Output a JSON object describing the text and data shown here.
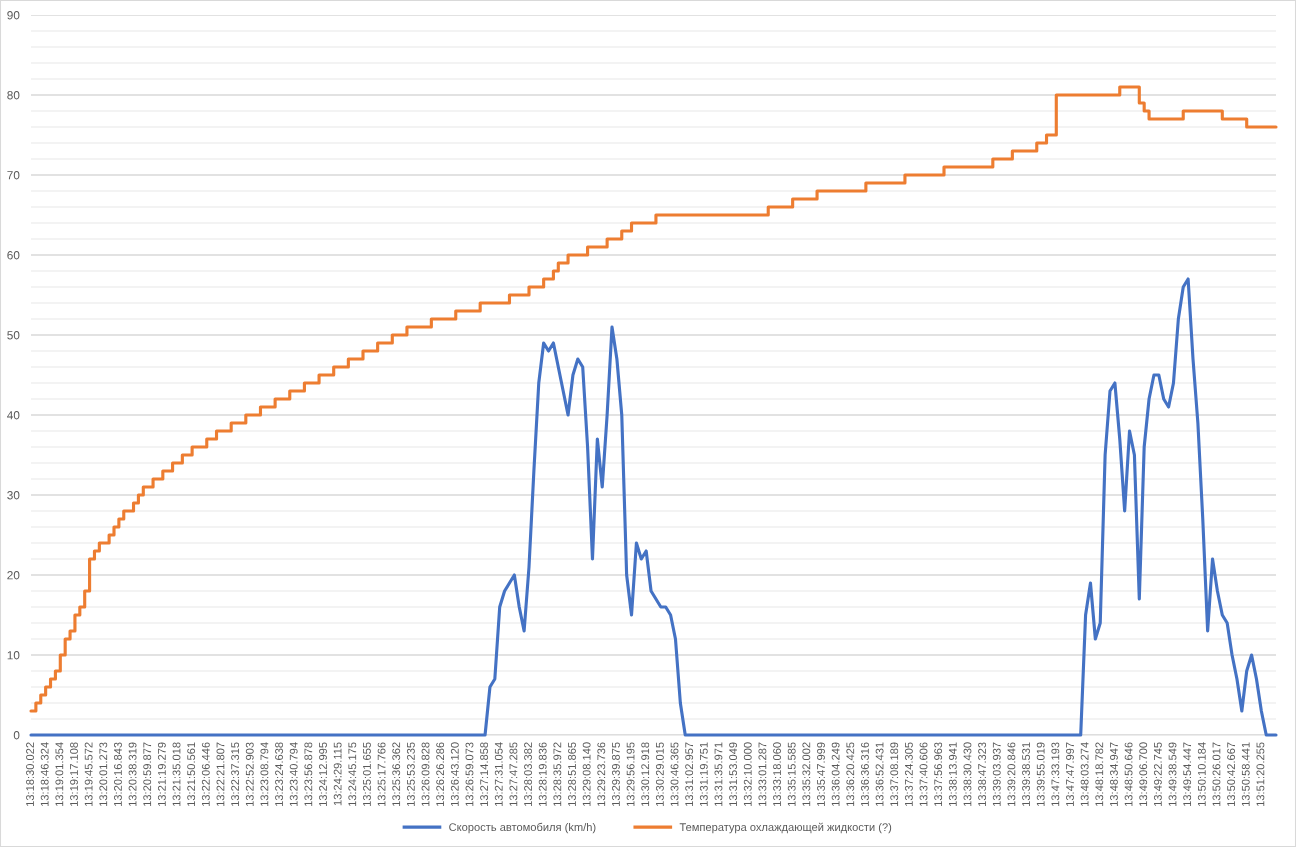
{
  "chart_data": {
    "type": "line",
    "categories": [
      "13:18:30.022",
      null,
      null,
      "13:18:46.324",
      null,
      null,
      "13:19:01.354",
      null,
      null,
      "13:19:17.108",
      null,
      null,
      "13:19:45.572",
      null,
      null,
      "13:20:01.273",
      null,
      null,
      "13:20:16.843",
      null,
      null,
      "13:20:38.319",
      null,
      null,
      "13:20:59.877",
      null,
      null,
      "13:21:19.279",
      null,
      null,
      "13:21:35.018",
      null,
      null,
      "13:21:50.561",
      null,
      null,
      "13:22:06.446",
      null,
      null,
      "13:22:21.807",
      null,
      null,
      "13:22:37.315",
      null,
      null,
      "13:22:52.903",
      null,
      null,
      "13:23:08.794",
      null,
      null,
      "13:23:24.638",
      null,
      null,
      "13:23:40.794",
      null,
      null,
      "13:23:56.878",
      null,
      null,
      "13:24:12.995",
      null,
      null,
      "13:24:29.115",
      null,
      null,
      "13:24:45.175",
      null,
      null,
      "13:25:01.655",
      null,
      null,
      "13:25:17.766",
      null,
      null,
      "13:25:36.362",
      null,
      null,
      "13:25:53.235",
      null,
      null,
      "13:26:09.828",
      null,
      null,
      "13:26:26.286",
      null,
      null,
      "13:26:43.120",
      null,
      null,
      "13:26:59.073",
      null,
      null,
      "13:27:14.858",
      null,
      null,
      "13:27:31.054",
      null,
      null,
      "13:27:47.285",
      null,
      null,
      "13:28:03.382",
      null,
      null,
      "13:28:19.836",
      null,
      null,
      "13:28:35.972",
      null,
      null,
      "13:28:51.865",
      null,
      null,
      "13:29:08.140",
      null,
      null,
      "13:29:23.736",
      null,
      null,
      "13:29:39.875",
      null,
      null,
      "13:29:56.195",
      null,
      null,
      "13:30:12.918",
      null,
      null,
      "13:30:29.015",
      null,
      null,
      "13:30:46.365",
      null,
      null,
      "13:31:02.957",
      null,
      null,
      "13:31:19.751",
      null,
      null,
      "13:31:35.971",
      null,
      null,
      "13:31:53.049",
      null,
      null,
      "13:32:10.000",
      null,
      null,
      "13:33:01.287",
      null,
      null,
      "13:33:18.060",
      null,
      null,
      "13:35:15.585",
      null,
      null,
      "13:35:32.002",
      null,
      null,
      "13:35:47.999",
      null,
      null,
      "13:36:04.249",
      null,
      null,
      "13:36:20.425",
      null,
      null,
      "13:36:36.316",
      null,
      null,
      "13:36:52.431",
      null,
      null,
      "13:37:08.189",
      null,
      null,
      "13:37:24.305",
      null,
      null,
      "13:37:40.606",
      null,
      null,
      "13:37:56.963",
      null,
      null,
      "13:38:13.941",
      null,
      null,
      "13:38:30.430",
      null,
      null,
      "13:38:47.323",
      null,
      null,
      "13:39:03.937",
      null,
      null,
      "13:39:20.846",
      null,
      null,
      "13:39:38.531",
      null,
      null,
      "13:39:55.019",
      null,
      null,
      "13:47:33.193",
      null,
      null,
      "13:47:47.997",
      null,
      null,
      "13:48:03.274",
      null,
      null,
      "13:48:18.782",
      null,
      null,
      "13:48:34.947",
      null,
      null,
      "13:48:50.646",
      null,
      null,
      "13:49:06.700",
      null,
      null,
      "13:49:22.745",
      null,
      null,
      "13:49:38.549",
      null,
      null,
      "13:49:54.447",
      null,
      null,
      "13:50:10.184",
      null,
      null,
      "13:50:26.017",
      null,
      null,
      "13:50:42.667",
      null,
      null,
      "13:50:58.441",
      null,
      null,
      "13:51:20.255",
      null,
      null,
      null
    ],
    "series": [
      {
        "name": "Скорость автомобиля (km/h)",
        "color": "#4472c4",
        "values": [
          0,
          0,
          0,
          0,
          0,
          0,
          0,
          0,
          0,
          0,
          0,
          0,
          0,
          0,
          0,
          0,
          0,
          0,
          0,
          0,
          0,
          0,
          0,
          0,
          0,
          0,
          0,
          0,
          0,
          0,
          0,
          0,
          0,
          0,
          0,
          0,
          0,
          0,
          0,
          0,
          0,
          0,
          0,
          0,
          0,
          0,
          0,
          0,
          0,
          0,
          0,
          0,
          0,
          0,
          0,
          0,
          0,
          0,
          0,
          0,
          0,
          0,
          0,
          0,
          0,
          0,
          0,
          0,
          0,
          0,
          0,
          0,
          0,
          0,
          0,
          0,
          0,
          0,
          0,
          0,
          0,
          0,
          0,
          0,
          0,
          0,
          0,
          0,
          0,
          0,
          0,
          0,
          0,
          0,
          6,
          7,
          16,
          18,
          19,
          20,
          16,
          13,
          21,
          33,
          44,
          49,
          48,
          49,
          46,
          43,
          40,
          45,
          47,
          46,
          36,
          22,
          37,
          31,
          40,
          51,
          47,
          40,
          20,
          15,
          24,
          22,
          23,
          18,
          17,
          16,
          16,
          15,
          12,
          4,
          0,
          0,
          0,
          0,
          0,
          0,
          0,
          0,
          0,
          0,
          0,
          0,
          0,
          0,
          0,
          0,
          0,
          0,
          0,
          0,
          0,
          0,
          0,
          0,
          0,
          0,
          0,
          0,
          0,
          0,
          0,
          0,
          0,
          0,
          0,
          0,
          0,
          0,
          0,
          0,
          0,
          0,
          0,
          0,
          0,
          0,
          0,
          0,
          0,
          0,
          0,
          0,
          0,
          0,
          0,
          0,
          0,
          0,
          0,
          0,
          0,
          0,
          0,
          0,
          0,
          0,
          0,
          0,
          0,
          0,
          0,
          0,
          0,
          0,
          0,
          0,
          0,
          0,
          0,
          0,
          0,
          0,
          15,
          19,
          12,
          14,
          35,
          43,
          44,
          37,
          28,
          38,
          35,
          17,
          36,
          42,
          45,
          45,
          42,
          41,
          44,
          52,
          56,
          57,
          47,
          39,
          27,
          13,
          22,
          18,
          15,
          14,
          10,
          7,
          3,
          8,
          10,
          7,
          3,
          0,
          0,
          0
        ]
      },
      {
        "name": "Температура охлаждающей жидкости (?)",
        "color": "#ed7d31",
        "type": "step",
        "values": [
          3,
          4,
          5,
          6,
          7,
          8,
          10,
          12,
          13,
          15,
          16,
          18,
          22,
          23,
          24,
          24,
          25,
          26,
          27,
          28,
          28,
          29,
          30,
          31,
          31,
          32,
          32,
          33,
          33,
          34,
          34,
          35,
          35,
          36,
          36,
          36,
          37,
          37,
          38,
          38,
          38,
          39,
          39,
          39,
          40,
          40,
          40,
          41,
          41,
          41,
          42,
          42,
          42,
          43,
          43,
          43,
          44,
          44,
          44,
          45,
          45,
          45,
          46,
          46,
          46,
          47,
          47,
          47,
          48,
          48,
          48,
          49,
          49,
          49,
          50,
          50,
          50,
          51,
          51,
          51,
          51,
          51,
          52,
          52,
          52,
          52,
          52,
          53,
          53,
          53,
          53,
          53,
          54,
          54,
          54,
          54,
          54,
          54,
          55,
          55,
          55,
          55,
          56,
          56,
          56,
          57,
          57,
          58,
          59,
          59,
          60,
          60,
          60,
          60,
          61,
          61,
          61,
          61,
          62,
          62,
          62,
          63,
          63,
          64,
          64,
          64,
          64,
          64,
          65,
          65,
          65,
          65,
          65,
          65,
          65,
          65,
          65,
          65,
          65,
          65,
          65,
          65,
          65,
          65,
          65,
          65,
          65,
          65,
          65,
          65,
          65,
          66,
          66,
          66,
          66,
          66,
          67,
          67,
          67,
          67,
          67,
          68,
          68,
          68,
          68,
          68,
          68,
          68,
          68,
          68,
          68,
          69,
          69,
          69,
          69,
          69,
          69,
          69,
          69,
          70,
          70,
          70,
          70,
          70,
          70,
          70,
          70,
          71,
          71,
          71,
          71,
          71,
          71,
          71,
          71,
          71,
          71,
          72,
          72,
          72,
          72,
          73,
          73,
          73,
          73,
          73,
          74,
          74,
          75,
          75,
          80,
          80,
          80,
          80,
          80,
          80,
          80,
          80,
          80,
          80,
          80,
          80,
          80,
          81,
          81,
          81,
          81,
          79,
          78,
          77,
          77,
          77,
          77,
          77,
          77,
          77,
          78,
          78,
          78,
          78,
          78,
          78,
          78,
          78,
          77,
          77,
          77,
          77,
          77,
          76,
          76,
          76,
          76,
          76,
          76,
          76
        ]
      }
    ],
    "ylim": [
      0,
      90
    ],
    "yticks": [
      0,
      {
        "value": 2,
        "label": null
      },
      {
        "value": 4,
        "label": null
      },
      {
        "value": 6,
        "label": null
      },
      {
        "value": 8,
        "label": null
      },
      10,
      {
        "value": 12,
        "label": null
      },
      {
        "value": 14,
        "label": null
      },
      {
        "value": 16,
        "label": null
      },
      {
        "value": 18,
        "label": null
      },
      20,
      {
        "value": 22,
        "label": null
      },
      {
        "value": 24,
        "label": null
      },
      {
        "value": 26,
        "label": null
      },
      {
        "value": 28,
        "label": null
      },
      30,
      {
        "value": 32,
        "label": null
      },
      {
        "value": 34,
        "label": null
      },
      {
        "value": 36,
        "label": null
      },
      {
        "value": 38,
        "label": null
      },
      40,
      {
        "value": 42,
        "label": null
      },
      {
        "value": 44,
        "label": null
      },
      {
        "value": 46,
        "label": null
      },
      {
        "value": 48,
        "label": null
      },
      50,
      {
        "value": 52,
        "label": null
      },
      {
        "value": 54,
        "label": null
      },
      {
        "value": 56,
        "label": null
      },
      {
        "value": 58,
        "label": null
      },
      60,
      {
        "value": 62,
        "label": null
      },
      {
        "value": 64,
        "label": null
      },
      {
        "value": 66,
        "label": null
      },
      {
        "value": 68,
        "label": null
      },
      70,
      {
        "value": 72,
        "label": null
      },
      {
        "value": 74,
        "label": null
      },
      {
        "value": 76,
        "label": null
      },
      {
        "value": 78,
        "label": null
      },
      80,
      {
        "value": 82,
        "label": null
      },
      {
        "value": 84,
        "label": null
      },
      {
        "value": 86,
        "label": null
      },
      {
        "value": 88,
        "label": null
      },
      90
    ],
    "grid": "y",
    "legend": "bottom",
    "marker": "none",
    "line_style": "solid"
  }
}
